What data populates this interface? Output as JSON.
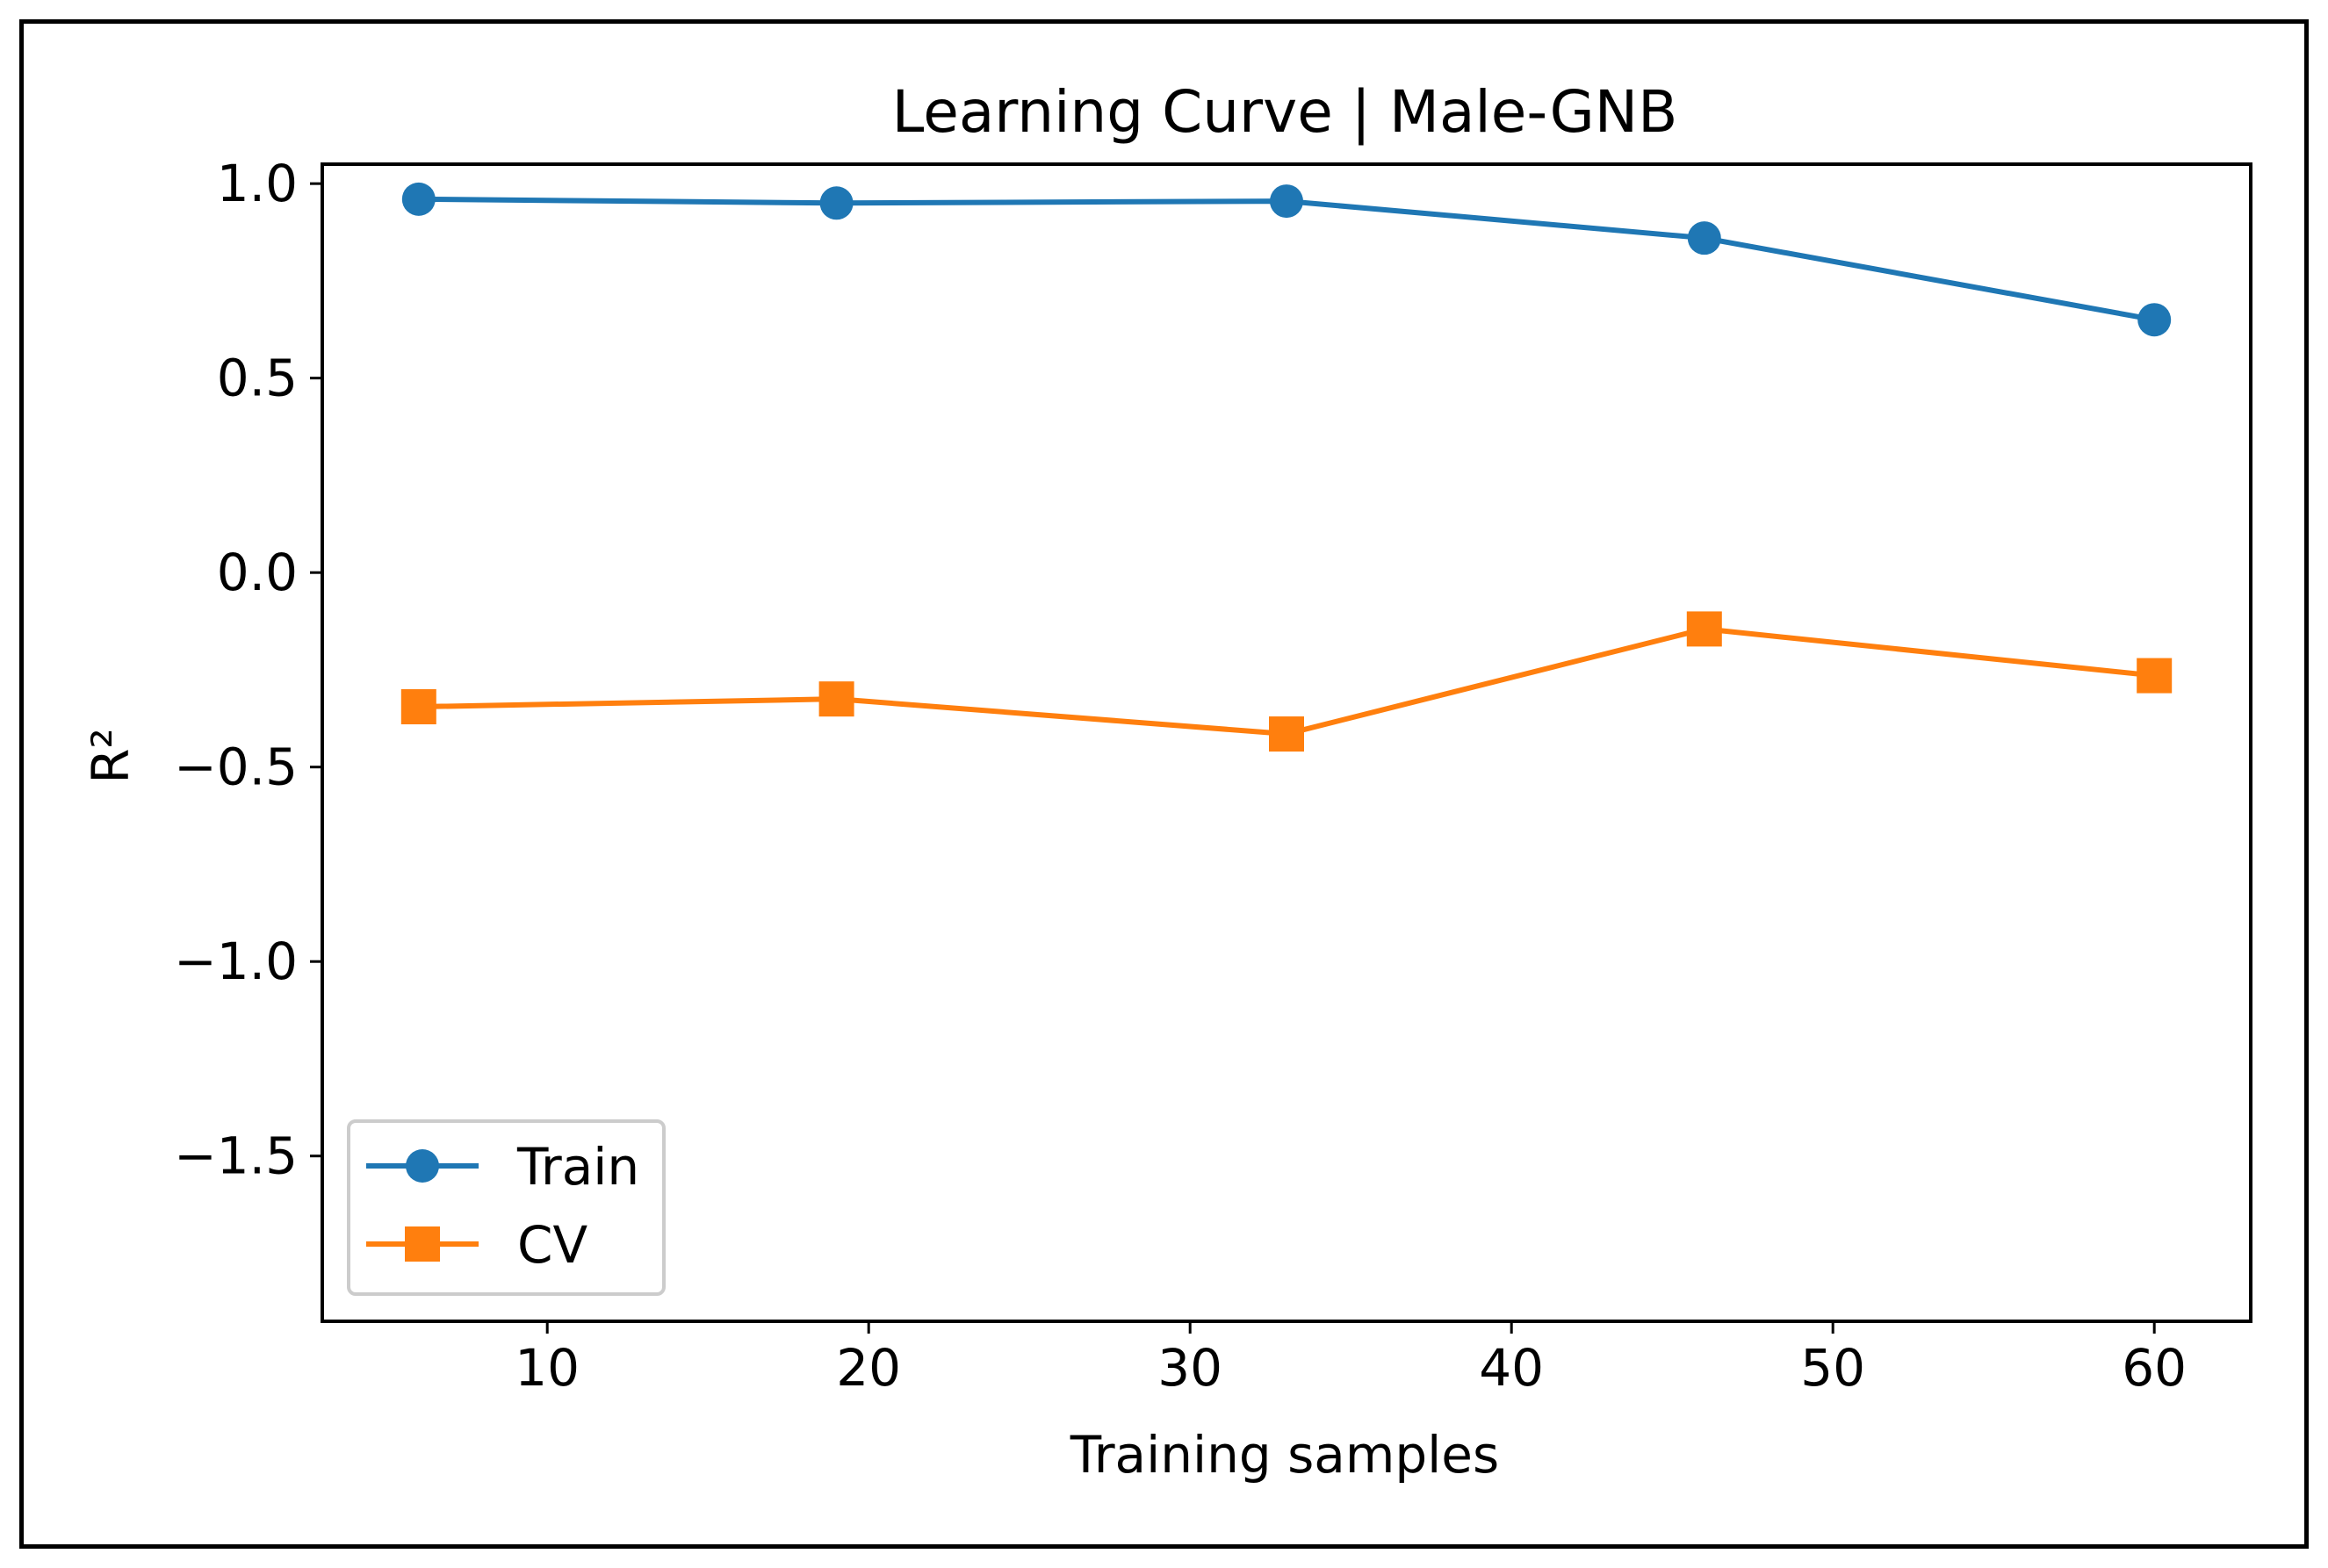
{
  "chart_data": {
    "type": "line",
    "title": "Learning Curve | Male-GNB",
    "xlabel": "Training samples",
    "ylabel": "R²",
    "x": [
      6,
      19,
      33,
      46,
      60
    ],
    "series": [
      {
        "name": "Train",
        "values": [
          0.96,
          0.95,
          0.955,
          0.86,
          0.65
        ],
        "color": "#1f77b4",
        "marker": "circle"
      },
      {
        "name": "CV",
        "values": [
          -0.345,
          -0.325,
          -0.415,
          -0.145,
          -0.265
        ],
        "color": "#ff7f0e",
        "marker": "square"
      }
    ],
    "xlim": [
      3,
      63
    ],
    "ylim": [
      -1.925,
      1.05
    ],
    "xticks": [
      10,
      20,
      30,
      40,
      50,
      60
    ],
    "xtick_labels": [
      "10",
      "20",
      "30",
      "40",
      "50",
      "60"
    ],
    "yticks": [
      1.0,
      0.5,
      0.0,
      -0.5,
      -1.0,
      -1.5
    ],
    "ytick_labels": [
      "1.0",
      "0.5",
      "0.0",
      "−0.5",
      "−1.0",
      "−1.5"
    ],
    "legend_position": "lower-left",
    "grid": false
  }
}
